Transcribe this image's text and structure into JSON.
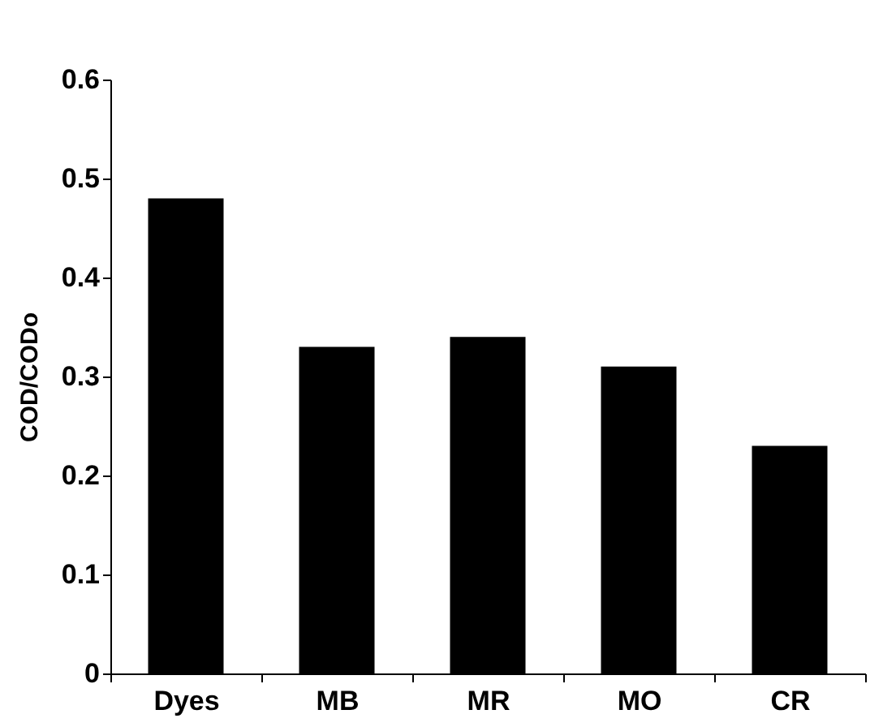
{
  "chart_data": {
    "type": "bar",
    "ylabel": "COD/CODo",
    "categories": [
      "Dyes",
      "MB",
      "MR",
      "MO",
      "CR"
    ],
    "values": [
      0.48,
      0.33,
      0.34,
      0.31,
      0.23
    ],
    "color": "#000000",
    "ylim": [
      0,
      0.6
    ],
    "yticks": [
      0,
      0.1,
      0.2,
      0.3,
      0.4,
      0.5,
      0.6
    ],
    "grid": false
  }
}
